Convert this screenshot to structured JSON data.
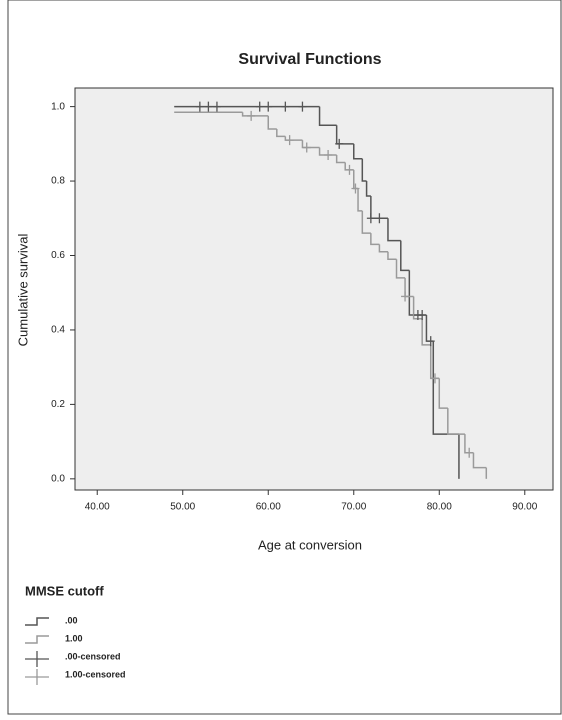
{
  "chart_data": {
    "type": "survival",
    "title": "Survival Functions",
    "x_label": "Age at conversion",
    "y_label": "Cumulative survival",
    "legend_title": "MMSE cutoff",
    "xlim": [
      37.4,
      93.3
    ],
    "ylim": [
      -0.03,
      1.05
    ],
    "xticks": [
      {
        "value": 40,
        "label": "40.00"
      },
      {
        "value": 50,
        "label": "50.00"
      },
      {
        "value": 60,
        "label": "60.00"
      },
      {
        "value": 70,
        "label": "70.00"
      },
      {
        "value": 80,
        "label": "80.00"
      },
      {
        "value": 90,
        "label": "90.00"
      }
    ],
    "yticks": [
      {
        "value": 0,
        "label": "0.0"
      },
      0.2,
      0.4,
      0.6,
      0.8,
      {
        "value": 1,
        "label": "1.0"
      }
    ],
    "series": [
      {
        "name": ".00",
        "color": "#555555",
        "kind": "step",
        "x": [
          49,
          66,
          68,
          70,
          71,
          71.5,
          72,
          74,
          75.5,
          76.5,
          78.5,
          79.3,
          82.3
        ],
        "values": [
          1.0,
          0.95,
          0.9,
          0.86,
          0.8,
          0.76,
          0.7,
          0.64,
          0.56,
          0.44,
          0.37,
          0.12,
          0.0
        ]
      },
      {
        "name": "1.00",
        "color": "#9a9a9a",
        "kind": "step",
        "x": [
          49,
          57,
          60,
          61,
          62,
          64,
          66,
          68,
          69,
          70,
          70.5,
          71,
          72,
          73,
          74,
          75,
          76,
          77,
          78,
          79,
          80,
          81,
          83,
          84,
          85.5
        ],
        "values": [
          0.985,
          0.975,
          0.94,
          0.92,
          0.91,
          0.89,
          0.87,
          0.85,
          0.83,
          0.78,
          0.72,
          0.66,
          0.63,
          0.61,
          0.59,
          0.54,
          0.49,
          0.43,
          0.36,
          0.27,
          0.19,
          0.12,
          0.07,
          0.03,
          0.0
        ]
      },
      {
        "name": ".00-censored",
        "color": "#555555",
        "kind": "censor",
        "x": [
          52,
          53,
          54,
          59,
          60,
          62,
          64,
          68.3,
          72,
          73,
          77.5,
          78,
          79
        ],
        "values": [
          1.0,
          1.0,
          1.0,
          1.0,
          1.0,
          1.0,
          1.0,
          0.9,
          0.7,
          0.7,
          0.44,
          0.44,
          0.37
        ]
      },
      {
        "name": "1.00-censored",
        "color": "#9a9a9a",
        "kind": "censor",
        "x": [
          58,
          62.5,
          64.5,
          67,
          69.5,
          70.2,
          76,
          79.5,
          83.5
        ],
        "values": [
          0.975,
          0.91,
          0.89,
          0.87,
          0.83,
          0.78,
          0.49,
          0.27,
          0.07
        ]
      }
    ]
  }
}
